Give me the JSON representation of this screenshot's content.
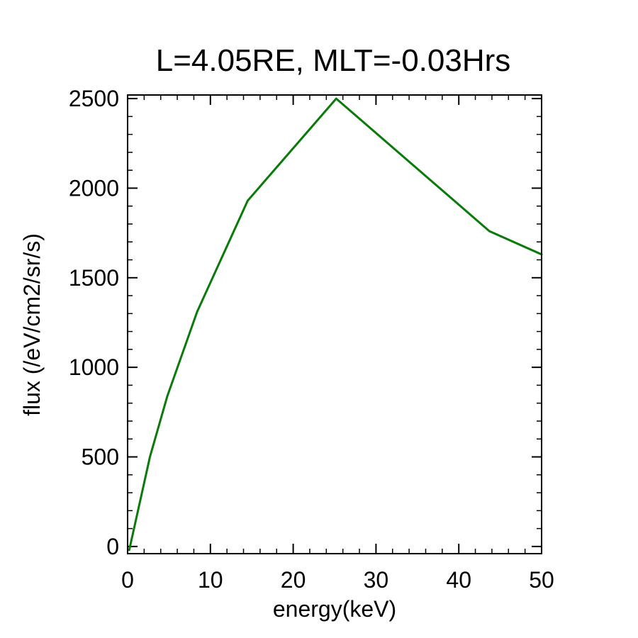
{
  "chart_data": {
    "type": "line",
    "title": "L=4.05RE, MLT=-0.03Hrs",
    "xlabel": "energy(keV)",
    "ylabel": "flux (/eV/cm2/sr/s)",
    "xlim": [
      0,
      50
    ],
    "ylim": [
      -40,
      2520
    ],
    "x_ticks": [
      0,
      10,
      20,
      30,
      40,
      50
    ],
    "x_tick_labels": [
      "0",
      "10",
      "20",
      "30",
      "40",
      "50"
    ],
    "x_minor_step": 2,
    "y_ticks": [
      0,
      500,
      1000,
      1500,
      2000,
      2500
    ],
    "y_tick_labels": [
      "0",
      "500",
      "1000",
      "1500",
      "2000",
      "2500"
    ],
    "y_minor_step": 100,
    "grid": false,
    "legend": "none",
    "series": [
      {
        "name": "flux",
        "color": "#0a7a0a",
        "x": [
          0.2,
          2.7,
          4.8,
          8.4,
          14.5,
          25.2,
          43.7,
          50.0
        ],
        "y": [
          -20,
          500,
          840,
          1310,
          1930,
          2500,
          1760,
          1630
        ]
      }
    ]
  }
}
